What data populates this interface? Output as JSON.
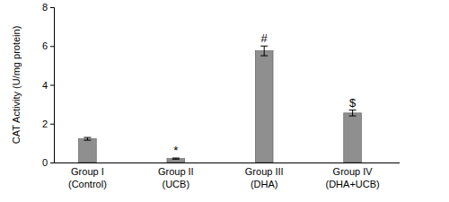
{
  "chart_data": {
    "type": "bar",
    "y_label": "CAT Activity (U/mg protein)",
    "categories": [
      "Group I\n(Control)",
      "Group II\n(UCB)",
      "Group III\n(DHA)",
      "Group IV\n(DHA+UCB)"
    ],
    "values": [
      1.22,
      0.2,
      5.75,
      2.55
    ],
    "errors": [
      0.07,
      0.03,
      0.25,
      0.15
    ],
    "annotations": [
      null,
      "*",
      "#",
      "$"
    ],
    "color": "#8f8f8f",
    "ylim": [
      0,
      8
    ],
    "yticks": [
      0,
      2,
      4,
      6,
      8
    ],
    "grid": false
  }
}
